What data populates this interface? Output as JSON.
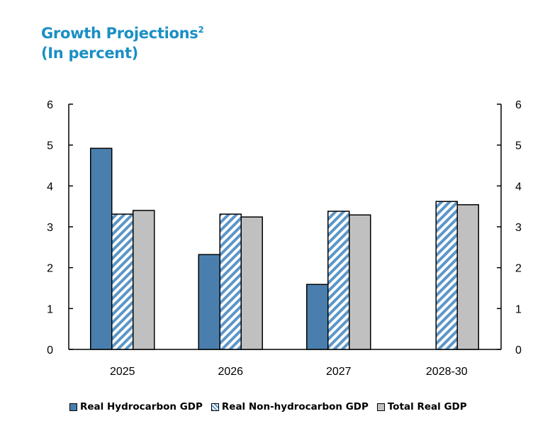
{
  "title": "Growth Projections",
  "title_sup": "2",
  "subtitle": "(In percent)",
  "chart_data": {
    "type": "bar",
    "categories": [
      "2025",
      "2026",
      "2027",
      "2028-30"
    ],
    "series": [
      {
        "name": "Real Hydrocarbon GDP",
        "values": [
          4.92,
          2.32,
          1.59,
          null
        ],
        "color": "#4a7fad",
        "pattern": "solid"
      },
      {
        "name": "Real Non-hydrocarbon GDP",
        "values": [
          3.31,
          3.31,
          3.38,
          3.62
        ],
        "color": "#5b96c8",
        "pattern": "diagonal-hatch"
      },
      {
        "name": "Total Real GDP",
        "values": [
          3.4,
          3.24,
          3.29,
          3.54
        ],
        "color": "#c0c0c0",
        "pattern": "solid"
      }
    ],
    "ylim": [
      0,
      6
    ],
    "yticks": [
      "0",
      "1",
      "2",
      "3",
      "4",
      "5",
      "6"
    ],
    "y_axis_both_sides": true,
    "grid": false,
    "legend": "bottom"
  }
}
